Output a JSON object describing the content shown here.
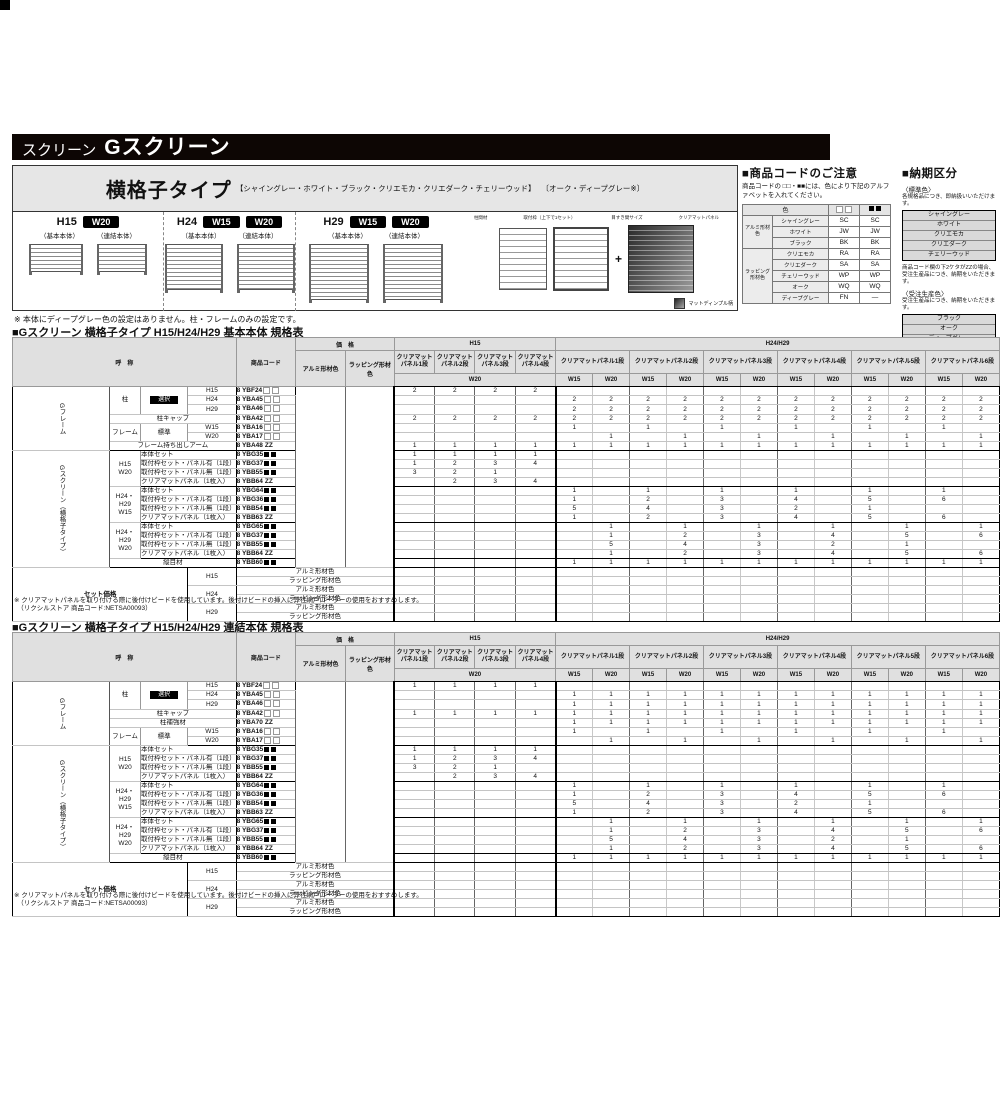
{
  "banner": {
    "prefix": "スクリーン",
    "title": "Gスクリーン"
  },
  "type_box": {
    "title": "横格子タイプ",
    "colors_main": "【シャイングレー・ホワイト・ブラック・クリエモカ・クリエダーク・チェリーウッド】",
    "colors_sub": "〔オーク・ディープグレー※〕",
    "variants": [
      {
        "h": "H15",
        "badges": [
          "W20"
        ],
        "subs": [
          "（基本本体）",
          "（連結本体）"
        ]
      },
      {
        "h": "H24",
        "badges": [
          "W15",
          "W20"
        ],
        "subs": [
          "（基本本体）",
          "（連結本体）"
        ]
      },
      {
        "h": "H29",
        "badges": [
          "W15",
          "W20"
        ],
        "subs": [
          "（基本本体）",
          "（連結本体）"
        ]
      }
    ],
    "diagram": {
      "labels": [
        "柱間材",
        "取付枠（上下で1セット）",
        "目すき間サイズ",
        "クリアマットパネル"
      ],
      "plus": "+",
      "caption": "マットディンプル柄"
    },
    "note": "※ 本体にディープグレー色の設定はありません。柱・フレームのみの設定です。"
  },
  "code_notice": {
    "title": "■商品コードのご注意",
    "body": "商品コードの □□・■■には、色により下記のアルファベットを入れてください。",
    "col_color": "色",
    "groups": [
      {
        "name": "アルミ形材色",
        "rows": [
          [
            "シャイングレー",
            "SC",
            "SC"
          ],
          [
            "ホワイト",
            "JW",
            "JW"
          ],
          [
            "ブラック",
            "BK",
            "BK"
          ]
        ]
      },
      {
        "name": "ラッピング形材色",
        "rows": [
          [
            "クリエモカ",
            "RA",
            "RA"
          ],
          [
            "クリエダーク",
            "SA",
            "SA"
          ],
          [
            "チェリーウッド",
            "WP",
            "WP"
          ],
          [
            "オーク",
            "WQ",
            "WQ"
          ],
          [
            "ディープグレー",
            "FN",
            "—"
          ]
        ]
      }
    ]
  },
  "delivery": {
    "title": "■納期区分",
    "std_label": "〈標準色〉",
    "std_note": "各規格品につき、即納扱いいただけます。",
    "std_colors": [
      "シャイングレー",
      "ホワイト",
      "クリエモカ",
      "クリエダーク",
      "チェリーウッド"
    ],
    "mid_note": "商品コード欄の下2ケタがZZの場合、受注生産品につき、納期をいただきます。",
    "order_label": "〈受注生産色〉",
    "order_note": "受注生産品につき、納期をいただきます。",
    "order_colors": [
      "ブラック",
      "オーク",
      "ディープグレー"
    ]
  },
  "footnote": "※ クリアマットパネルを取り付ける際に後付けビードを使用しています。後付けビードの挿入に弊社網戸ローラーの使用をおすすめします。",
  "footnote2": "（リクシルストア 商品コード:NETSA00093）",
  "tables": [
    {
      "title": "■Gスクリーン 横格子タイプ H15/H24/H29 基本本体 規格表",
      "header": {
        "name": "呼　称",
        "code": "商品コード",
        "price": "価　格",
        "price_cols": [
          "アルミ形材色",
          "ラッピング形材色"
        ],
        "h15": {
          "label": "H15",
          "panels": [
            "クリアマット\nパネル1段",
            "クリアマット\nパネル2段",
            "クリアマット\nパネル3段",
            "クリアマット\nパネル4段"
          ],
          "width": "W20"
        },
        "h24": {
          "label": "H24/H29",
          "panels": [
            "クリアマットパネル1段",
            "クリアマットパネル2段",
            "クリアマットパネル3段",
            "クリアマットパネル4段",
            "クリアマットパネル5段",
            "クリアマットパネル6段"
          ],
          "widths": [
            "W15",
            "W20"
          ]
        }
      },
      "frame_group": "Gフレーム",
      "screen_group": "Gスクリーン（横格子タイプ）",
      "set_label": "セット価格",
      "rows": [
        {
          "k": "post1",
          "c1": "柱",
          "c2": "選択",
          "l": "H15",
          "code": "8 YBF24",
          "sfx": "o",
          "a": [
            "2",
            "2",
            "2",
            "2"
          ],
          "b": []
        },
        {
          "k": "plain",
          "l": "H24",
          "code": "8 YBA45",
          "sfx": "o",
          "a": [],
          "b": [
            "2",
            "2",
            "2",
            "2",
            "2",
            "2",
            "2",
            "2",
            "2",
            "2",
            "2",
            "2"
          ]
        },
        {
          "k": "plain",
          "l": "H29",
          "code": "8 YBA46",
          "sfx": "o",
          "a": [],
          "b": [
            "2",
            "2",
            "2",
            "2",
            "2",
            "2",
            "2",
            "2",
            "2",
            "2",
            "2",
            "2"
          ]
        },
        {
          "k": "wide",
          "l": "柱キャップ",
          "code": "8 YBA42",
          "sfx": "o",
          "a": [
            "2",
            "2",
            "2",
            "2"
          ],
          "b": [
            "2",
            "2",
            "2",
            "2",
            "2",
            "2",
            "2",
            "2",
            "2",
            "2",
            "2",
            "2"
          ]
        },
        {
          "k": "frame1",
          "c1": "フレーム",
          "c2": "標準",
          "l": "W15",
          "code": "8 YBA16",
          "sfx": "o",
          "a": [],
          "b": [
            "1",
            "",
            "1",
            "",
            "1",
            "",
            "1",
            "",
            "1",
            "",
            "1",
            ""
          ]
        },
        {
          "k": "plain",
          "l": "W20",
          "code": "8 YBA17",
          "sfx": "o",
          "a": [],
          "b": [
            "",
            "1",
            "",
            "1",
            "",
            "1",
            "",
            "1",
            "",
            "1",
            "",
            "1"
          ]
        },
        {
          "k": "wide",
          "l": "フレーム持ち出しアーム",
          "code": "8 YBA48",
          "sfx": "zz",
          "a": [
            "1",
            "1",
            "1",
            "1"
          ],
          "b": [
            "1",
            "1",
            "1",
            "1",
            "1",
            "1",
            "1",
            "1",
            "1",
            "1",
            "1",
            "1"
          ]
        },
        {
          "k": "screen1",
          "size": "H15\nW20",
          "l": "本体セット",
          "code": "8 YBG35",
          "sfx": "f",
          "a": [
            "1",
            "1",
            "1",
            "1"
          ],
          "b": []
        },
        {
          "k": "screen",
          "l": "取付枠セット・パネル有（1段）",
          "code": "8 YBG37",
          "sfx": "f",
          "a": [
            "1",
            "2",
            "3",
            "4"
          ],
          "b": []
        },
        {
          "k": "screen",
          "l": "取付枠セット・パネル無（1段）",
          "code": "8 YBB55",
          "sfx": "f",
          "a": [
            "3",
            "2",
            "1",
            ""
          ],
          "b": []
        },
        {
          "k": "screen",
          "l": "クリアマットパネル（1枚入）",
          "code": "8 YBB64",
          "sfx": "zz",
          "a": [
            "",
            "2",
            "3",
            "4"
          ],
          "b": []
        },
        {
          "k": "screen1",
          "size": "H24・H29\nW15",
          "l": "本体セット",
          "code": "8 YBG64",
          "sfx": "f",
          "a": [],
          "b": [
            "1",
            "",
            "1",
            "",
            "1",
            "",
            "1",
            "",
            "1",
            "",
            "1",
            ""
          ]
        },
        {
          "k": "screen",
          "l": "取付枠セット・パネル有（1段）",
          "code": "8 YBG36",
          "sfx": "f",
          "a": [],
          "b": [
            "1",
            "",
            "2",
            "",
            "3",
            "",
            "4",
            "",
            "5",
            "",
            "6",
            ""
          ]
        },
        {
          "k": "screen",
          "l": "取付枠セット・パネル無（1段）",
          "code": "8 YBB54",
          "sfx": "f",
          "a": [],
          "b": [
            "5",
            "",
            "4",
            "",
            "3",
            "",
            "2",
            "",
            "1",
            "",
            "",
            ""
          ]
        },
        {
          "k": "screen",
          "l": "クリアマットパネル（1枚入）",
          "code": "8 YBB63",
          "sfx": "zz",
          "a": [],
          "b": [
            "1",
            "",
            "2",
            "",
            "3",
            "",
            "4",
            "",
            "5",
            "",
            "6",
            ""
          ]
        },
        {
          "k": "screen1",
          "size": "H24・H29\nW20",
          "l": "本体セット",
          "code": "8 YBG65",
          "sfx": "f",
          "a": [],
          "b": [
            "",
            "1",
            "",
            "1",
            "",
            "1",
            "",
            "1",
            "",
            "1",
            "",
            "1"
          ]
        },
        {
          "k": "screen",
          "l": "取付枠セット・パネル有（1段）",
          "code": "8 YBG37",
          "sfx": "f",
          "a": [],
          "b": [
            "",
            "1",
            "",
            "2",
            "",
            "3",
            "",
            "4",
            "",
            "5",
            "",
            "6"
          ]
        },
        {
          "k": "screen",
          "l": "取付枠セット・パネル無（1段）",
          "code": "8 YBB55",
          "sfx": "f",
          "a": [],
          "b": [
            "",
            "5",
            "",
            "4",
            "",
            "3",
            "",
            "2",
            "",
            "1",
            "",
            ""
          ]
        },
        {
          "k": "screen",
          "l": "クリアマットパネル（1枚入）",
          "code": "8 YBB64",
          "sfx": "zz",
          "a": [],
          "b": [
            "",
            "1",
            "",
            "2",
            "",
            "3",
            "",
            "4",
            "",
            "5",
            "",
            "6"
          ]
        },
        {
          "k": "joint",
          "l": "縦目材",
          "code": "8 YBB60",
          "sfx": "f",
          "a": [],
          "b": [
            "1",
            "1",
            "1",
            "1",
            "1",
            "1",
            "1",
            "1",
            "1",
            "1",
            "1",
            "1"
          ]
        }
      ],
      "set_rows": [
        {
          "size": "H15",
          "label": "アルミ形材色"
        },
        {
          "label": "ラッピング形材色"
        },
        {
          "size": "H24",
          "label": "アルミ形材色"
        },
        {
          "label": "ラッピング形材色"
        },
        {
          "size": "H29",
          "label": "アルミ形材色"
        },
        {
          "label": "ラッピング形材色"
        }
      ]
    },
    {
      "title": "■Gスクリーン 横格子タイプ H15/H24/H29 連結本体 規格表",
      "header": {
        "name": "呼　称",
        "code": "商品コード",
        "price": "価　格",
        "price_cols": [
          "アルミ形材色",
          "ラッピング形材色"
        ],
        "h15": {
          "label": "H15",
          "panels": [
            "クリアマット\nパネル1段",
            "クリアマット\nパネル2段",
            "クリアマット\nパネル3段",
            "クリアマット\nパネル4段"
          ],
          "width": "W20"
        },
        "h24": {
          "label": "H24/H29",
          "panels": [
            "クリアマットパネル1段",
            "クリアマットパネル2段",
            "クリアマットパネル3段",
            "クリアマットパネル4段",
            "クリアマットパネル5段",
            "クリアマットパネル6段"
          ],
          "widths": [
            "W15",
            "W20"
          ]
        }
      },
      "frame_group": "Gフレーム",
      "screen_group": "Gスクリーン（横格子タイプ）",
      "set_label": "セット価格",
      "rows": [
        {
          "k": "post1",
          "c1": "柱",
          "c2": "選択",
          "l": "H15",
          "code": "8 YBF24",
          "sfx": "o",
          "a": [
            "1",
            "1",
            "1",
            "1"
          ],
          "b": []
        },
        {
          "k": "plain",
          "l": "H24",
          "code": "8 YBA45",
          "sfx": "o",
          "a": [],
          "b": [
            "1",
            "1",
            "1",
            "1",
            "1",
            "1",
            "1",
            "1",
            "1",
            "1",
            "1",
            "1"
          ]
        },
        {
          "k": "plain",
          "l": "H29",
          "code": "8 YBA46",
          "sfx": "o",
          "a": [],
          "b": [
            "1",
            "1",
            "1",
            "1",
            "1",
            "1",
            "1",
            "1",
            "1",
            "1",
            "1",
            "1"
          ]
        },
        {
          "k": "wide",
          "l": "柱キャップ",
          "code": "8 YBA42",
          "sfx": "o",
          "a": [
            "1",
            "1",
            "1",
            "1"
          ],
          "b": [
            "1",
            "1",
            "1",
            "1",
            "1",
            "1",
            "1",
            "1",
            "1",
            "1",
            "1",
            "1"
          ]
        },
        {
          "k": "wide",
          "l": "柱補強材",
          "code": "8 YBA70",
          "sfx": "zz",
          "a": [],
          "b": [
            "1",
            "1",
            "1",
            "1",
            "1",
            "1",
            "1",
            "1",
            "1",
            "1",
            "1",
            "1"
          ]
        },
        {
          "k": "frame1",
          "c1": "フレーム",
          "c2": "標準",
          "l": "W15",
          "code": "8 YBA16",
          "sfx": "o",
          "a": [],
          "b": [
            "1",
            "",
            "1",
            "",
            "1",
            "",
            "1",
            "",
            "1",
            "",
            "1",
            ""
          ]
        },
        {
          "k": "plain",
          "l": "W20",
          "code": "8 YBA17",
          "sfx": "o",
          "a": [],
          "b": [
            "",
            "1",
            "",
            "1",
            "",
            "1",
            "",
            "1",
            "",
            "1",
            "",
            "1"
          ]
        },
        {
          "k": "screen1",
          "size": "H15\nW20",
          "l": "本体セット",
          "code": "8 YBG35",
          "sfx": "f",
          "a": [
            "1",
            "1",
            "1",
            "1"
          ],
          "b": []
        },
        {
          "k": "screen",
          "l": "取付枠セット・パネル有（1段）",
          "code": "8 YBG37",
          "sfx": "f",
          "a": [
            "1",
            "2",
            "3",
            "4"
          ],
          "b": []
        },
        {
          "k": "screen",
          "l": "取付枠セット・パネル無（1段）",
          "code": "8 YBB55",
          "sfx": "f",
          "a": [
            "3",
            "2",
            "1",
            ""
          ],
          "b": []
        },
        {
          "k": "screen",
          "l": "クリアマットパネル（1枚入）",
          "code": "8 YBB64",
          "sfx": "zz",
          "a": [
            "",
            "2",
            "3",
            "4"
          ],
          "b": []
        },
        {
          "k": "screen1",
          "size": "H24・H29\nW15",
          "l": "本体セット",
          "code": "8 YBG64",
          "sfx": "f",
          "a": [],
          "b": [
            "1",
            "",
            "1",
            "",
            "1",
            "",
            "1",
            "",
            "1",
            "",
            "1",
            ""
          ]
        },
        {
          "k": "screen",
          "l": "取付枠セット・パネル有（1段）",
          "code": "8 YBG36",
          "sfx": "f",
          "a": [],
          "b": [
            "1",
            "",
            "2",
            "",
            "3",
            "",
            "4",
            "",
            "5",
            "",
            "6",
            ""
          ]
        },
        {
          "k": "screen",
          "l": "取付枠セット・パネル無（1段）",
          "code": "8 YBB54",
          "sfx": "f",
          "a": [],
          "b": [
            "5",
            "",
            "4",
            "",
            "3",
            "",
            "2",
            "",
            "1",
            "",
            "",
            ""
          ]
        },
        {
          "k": "screen",
          "l": "クリアマットパネル（1枚入）",
          "code": "8 YBB63",
          "sfx": "zz",
          "a": [],
          "b": [
            "1",
            "",
            "2",
            "",
            "3",
            "",
            "4",
            "",
            "5",
            "",
            "6",
            ""
          ]
        },
        {
          "k": "screen1",
          "size": "H24・H29\nW20",
          "l": "本体セット",
          "code": "8 YBG65",
          "sfx": "f",
          "a": [],
          "b": [
            "",
            "1",
            "",
            "1",
            "",
            "1",
            "",
            "1",
            "",
            "1",
            "",
            "1"
          ]
        },
        {
          "k": "screen",
          "l": "取付枠セット・パネル有（1段）",
          "code": "8 YBG37",
          "sfx": "f",
          "a": [],
          "b": [
            "",
            "1",
            "",
            "2",
            "",
            "3",
            "",
            "4",
            "",
            "5",
            "",
            "6"
          ]
        },
        {
          "k": "screen",
          "l": "取付枠セット・パネル無（1段）",
          "code": "8 YBB55",
          "sfx": "f",
          "a": [],
          "b": [
            "",
            "5",
            "",
            "4",
            "",
            "3",
            "",
            "2",
            "",
            "1",
            "",
            ""
          ]
        },
        {
          "k": "screen",
          "l": "クリアマットパネル（1枚入）",
          "code": "8 YBB64",
          "sfx": "zz",
          "a": [],
          "b": [
            "",
            "1",
            "",
            "2",
            "",
            "3",
            "",
            "4",
            "",
            "5",
            "",
            "6"
          ]
        },
        {
          "k": "joint",
          "l": "縦目材",
          "code": "8 YBB60",
          "sfx": "f",
          "a": [],
          "b": [
            "1",
            "1",
            "1",
            "1",
            "1",
            "1",
            "1",
            "1",
            "1",
            "1",
            "1",
            "1"
          ]
        }
      ],
      "set_rows": [
        {
          "size": "H15",
          "label": "アルミ形材色"
        },
        {
          "label": "ラッピング形材色"
        },
        {
          "size": "H24",
          "label": "アルミ形材色"
        },
        {
          "label": "ラッピング形材色"
        },
        {
          "size": "H29",
          "label": "アルミ形材色"
        },
        {
          "label": "ラッピング形材色"
        }
      ]
    }
  ]
}
